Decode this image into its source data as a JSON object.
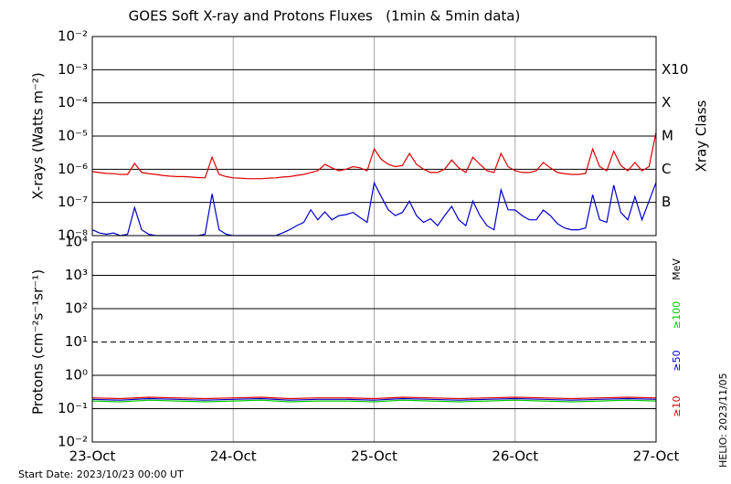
{
  "title": "GOES Soft X-ray and Protons Fluxes   (1min & 5min data)",
  "footer": {
    "start_date": "Start Date: 2023/10/23 00:00 UT",
    "credit": "HELIO: 2023/11/05"
  },
  "chart_data": [
    {
      "type": "line",
      "y_label": "X-rays (Watts m⁻²)",
      "log_y": true,
      "grid": true,
      "xlim": [
        0,
        4
      ],
      "xticks": [
        0,
        1,
        2,
        3,
        4
      ],
      "ylim": [
        1e-08,
        0.01
      ],
      "yticks": [
        {
          "value": 1e-08,
          "label": "10⁻⁸"
        },
        {
          "value": 1e-07,
          "label": "10⁻⁷"
        },
        {
          "value": 1e-06,
          "label": "10⁻⁶"
        },
        {
          "value": 1e-05,
          "label": "10⁻⁵"
        },
        {
          "value": 0.0001,
          "label": "10⁻⁴"
        },
        {
          "value": 0.001,
          "label": "10⁻³"
        },
        {
          "value": 0.01,
          "label": "10⁻²"
        }
      ],
      "right_label": "Xray Class",
      "class_labels": [
        {
          "value": 0.001,
          "label": "X10"
        },
        {
          "value": 0.0001,
          "label": "X"
        },
        {
          "value": 1e-05,
          "label": "M"
        },
        {
          "value": 1e-06,
          "label": "C"
        },
        {
          "value": 1e-07,
          "label": "B"
        }
      ],
      "x": [
        0,
        0.05,
        0.1,
        0.15,
        0.2,
        0.25,
        0.3,
        0.35,
        0.4,
        0.45,
        0.5,
        0.55,
        0.6,
        0.65,
        0.7,
        0.75,
        0.8,
        0.85,
        0.9,
        0.95,
        1,
        1.05,
        1.1,
        1.15,
        1.2,
        1.25,
        1.3,
        1.35,
        1.4,
        1.45,
        1.5,
        1.55,
        1.6,
        1.65,
        1.7,
        1.75,
        1.8,
        1.85,
        1.9,
        1.95,
        2,
        2.05,
        2.1,
        2.15,
        2.2,
        2.25,
        2.3,
        2.35,
        2.4,
        2.45,
        2.5,
        2.55,
        2.6,
        2.65,
        2.7,
        2.75,
        2.8,
        2.85,
        2.9,
        2.95,
        3,
        3.05,
        3.1,
        3.15,
        3.2,
        3.25,
        3.3,
        3.35,
        3.4,
        3.45,
        3.5,
        3.55,
        3.6,
        3.65,
        3.7,
        3.75,
        3.8,
        3.85,
        3.9,
        3.95,
        4
      ],
      "series": [
        {
          "color": "#dd0000",
          "values": [
            8.5e-07,
            8e-07,
            7.5e-07,
            7.4e-07,
            7e-07,
            7e-07,
            1.5e-06,
            8e-07,
            7.4e-07,
            7e-07,
            6.5e-07,
            6.2e-07,
            6e-07,
            6e-07,
            5.8e-07,
            5.6e-07,
            5.5e-07,
            2.3e-06,
            7e-07,
            6e-07,
            5.5e-07,
            5.4e-07,
            5.2e-07,
            5.2e-07,
            5.2e-07,
            5.4e-07,
            5.5e-07,
            5.8e-07,
            6e-07,
            6.5e-07,
            7e-07,
            8e-07,
            9e-07,
            1.4e-06,
            1.1e-06,
            9e-07,
            1e-06,
            1.2e-06,
            1.1e-06,
            9e-07,
            4.1e-06,
            2e-06,
            1.4e-06,
            1.2e-06,
            1.3e-06,
            3e-06,
            1.4e-06,
            1e-06,
            8e-07,
            8e-07,
            1e-06,
            1.9e-06,
            1.1e-06,
            8e-07,
            2.3e-06,
            1.4e-06,
            9e-07,
            8e-07,
            3e-06,
            1.2e-06,
            9e-07,
            8e-07,
            8e-07,
            9e-07,
            1.6e-06,
            1.1e-06,
            8e-07,
            7.4e-07,
            7e-07,
            7e-07,
            7.5e-07,
            4.1e-06,
            1.2e-06,
            9e-07,
            3.5e-06,
            1.3e-06,
            9e-07,
            1.6e-06,
            9e-07,
            1.2e-06,
            1.3e-05
          ]
        },
        {
          "color": "#0000cc",
          "values": [
            1.5e-08,
            1.2e-08,
            1.1e-08,
            1.2e-08,
            1e-08,
            1.1e-08,
            7e-08,
            1.5e-08,
            1.1e-08,
            1e-08,
            1e-08,
            1e-08,
            1e-08,
            1e-08,
            1e-08,
            1e-08,
            1.1e-08,
            1.8e-07,
            1.5e-08,
            1.1e-08,
            1e-08,
            1e-08,
            1e-08,
            1e-08,
            1e-08,
            1e-08,
            1e-08,
            1.2e-08,
            1.5e-08,
            2e-08,
            2.5e-08,
            6e-08,
            3e-08,
            5.2e-08,
            3e-08,
            4e-08,
            4.3e-08,
            5e-08,
            3.5e-08,
            2.5e-08,
            3.9e-07,
            1.5e-07,
            6e-08,
            4e-08,
            5e-08,
            1.1e-07,
            4e-08,
            2.5e-08,
            3.2e-08,
            2e-08,
            4e-08,
            7.6e-08,
            3e-08,
            2e-08,
            1.1e-07,
            4e-08,
            2e-08,
            1.5e-08,
            2.4e-07,
            6e-08,
            5.9e-08,
            4e-08,
            3e-08,
            3e-08,
            5.9e-08,
            4e-08,
            2.3e-08,
            1.7e-08,
            1.5e-08,
            1.5e-08,
            1.7e-08,
            1.7e-07,
            3e-08,
            2.5e-08,
            3.3e-07,
            5e-08,
            3e-08,
            1.5e-07,
            3e-08,
            1.1e-07,
            4e-07
          ]
        }
      ]
    },
    {
      "type": "line",
      "y_label": "Protons (cm⁻²s⁻¹sr⁻¹)",
      "log_y": true,
      "grid": true,
      "xlim": [
        0,
        4
      ],
      "xticks": [
        {
          "value": 0,
          "label": "23-Oct"
        },
        {
          "value": 1,
          "label": "24-Oct"
        },
        {
          "value": 2,
          "label": "25-Oct"
        },
        {
          "value": 3,
          "label": "26-Oct"
        },
        {
          "value": 4,
          "label": "27-Oct"
        }
      ],
      "ylim": [
        0.01,
        10000.0
      ],
      "yticks": [
        {
          "value": 0.01,
          "label": "10⁻²"
        },
        {
          "value": 0.1,
          "label": "10⁻¹"
        },
        {
          "value": 1,
          "label": "10⁰"
        },
        {
          "value": 10,
          "label": "10¹"
        },
        {
          "value": 100,
          "label": "10²"
        },
        {
          "value": 1000,
          "label": "10³"
        },
        {
          "value": 10000,
          "label": "10⁴"
        }
      ],
      "threshold": 10,
      "legend_title": "MeV",
      "x": [
        0,
        0.2,
        0.4,
        0.6,
        0.8,
        1,
        1.2,
        1.4,
        1.6,
        1.8,
        2,
        2.2,
        2.4,
        2.6,
        2.8,
        3,
        3.2,
        3.4,
        3.6,
        3.8,
        4
      ],
      "series": [
        {
          "name": "≥100",
          "color": "#00cc00",
          "values": [
            0.17,
            0.16,
            0.18,
            0.17,
            0.16,
            0.17,
            0.18,
            0.16,
            0.17,
            0.17,
            0.16,
            0.18,
            0.17,
            0.16,
            0.17,
            0.18,
            0.17,
            0.16,
            0.17,
            0.18,
            0.17
          ]
        },
        {
          "name": "≥50",
          "color": "#0000cc",
          "values": [
            0.19,
            0.18,
            0.2,
            0.19,
            0.18,
            0.19,
            0.2,
            0.18,
            0.19,
            0.19,
            0.18,
            0.2,
            0.19,
            0.18,
            0.19,
            0.2,
            0.19,
            0.18,
            0.19,
            0.2,
            0.19
          ]
        },
        {
          "name": "≥10",
          "color": "#dd0000",
          "values": [
            0.21,
            0.2,
            0.22,
            0.21,
            0.2,
            0.21,
            0.22,
            0.2,
            0.21,
            0.21,
            0.2,
            0.22,
            0.21,
            0.2,
            0.21,
            0.22,
            0.21,
            0.2,
            0.21,
            0.22,
            0.21
          ]
        }
      ]
    }
  ]
}
